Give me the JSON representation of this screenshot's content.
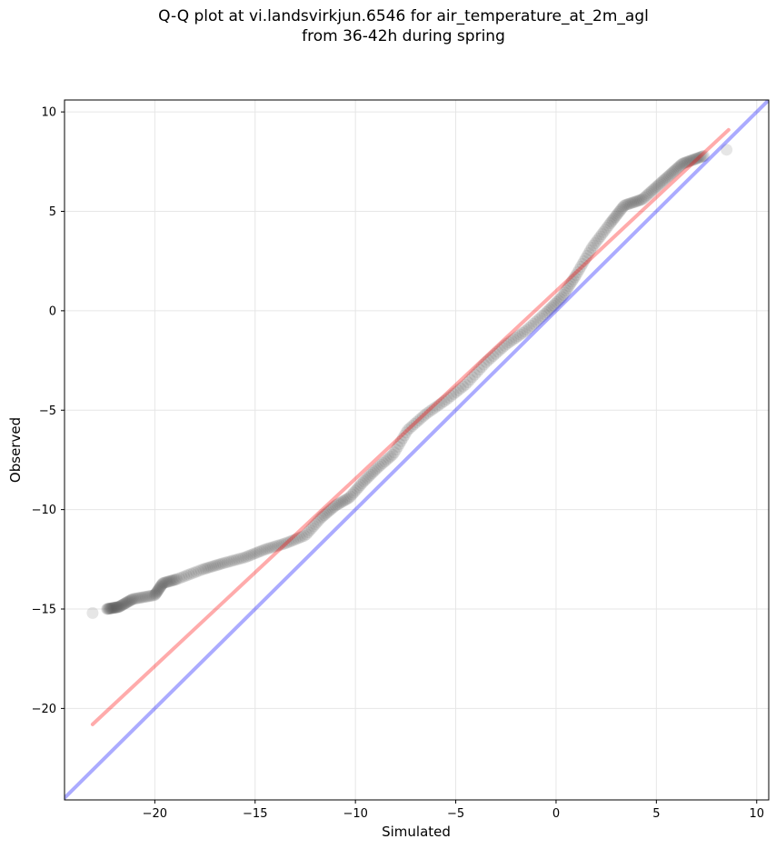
{
  "chart_data": {
    "type": "scatter",
    "title": [
      "Q-Q plot at vi.landsvirkjun.6546 for air_temperature_at_2m_agl",
      "from 36-42h during spring"
    ],
    "xlabel": "Simulated",
    "ylabel": "Observed",
    "xlim": [
      -24.5,
      10.6
    ],
    "ylim": [
      -24.6,
      10.6
    ],
    "xticks": [
      -20,
      -15,
      -10,
      -5,
      0,
      5,
      10
    ],
    "yticks": [
      -20,
      -15,
      -10,
      -5,
      0,
      5,
      10
    ],
    "xtick_labels": [
      "−20",
      "−15",
      "−10",
      "−5",
      "0",
      "5",
      "10"
    ],
    "ytick_labels": [
      "−20",
      "−15",
      "−10",
      "−5",
      "0",
      "5",
      "10"
    ],
    "grid": true,
    "points": {
      "color": "#555555",
      "knots": [
        [
          -23.1,
          -15.2
        ],
        [
          -22.4,
          -15.0
        ],
        [
          -21.8,
          -14.9
        ],
        [
          -21.1,
          -14.5
        ],
        [
          -20.0,
          -14.3
        ],
        [
          -19.6,
          -13.7
        ],
        [
          -18.9,
          -13.5
        ],
        [
          -17.6,
          -13.0
        ],
        [
          -16.6,
          -12.7
        ],
        [
          -15.5,
          -12.4
        ],
        [
          -14.5,
          -12.0
        ],
        [
          -13.5,
          -11.7
        ],
        [
          -12.5,
          -11.3
        ],
        [
          -11.7,
          -10.4
        ],
        [
          -11.0,
          -9.8
        ],
        [
          -10.3,
          -9.4
        ],
        [
          -9.6,
          -8.6
        ],
        [
          -8.9,
          -7.9
        ],
        [
          -8.1,
          -7.2
        ],
        [
          -7.4,
          -6.0
        ],
        [
          -6.5,
          -5.2
        ],
        [
          -5.5,
          -4.5
        ],
        [
          -4.5,
          -3.7
        ],
        [
          -3.5,
          -2.6
        ],
        [
          -2.5,
          -1.7
        ],
        [
          -1.5,
          -1.0
        ],
        [
          -0.5,
          -0.1
        ],
        [
          0.3,
          0.7
        ],
        [
          1.0,
          1.8
        ],
        [
          1.8,
          3.2
        ],
        [
          2.7,
          4.4
        ],
        [
          3.4,
          5.3
        ],
        [
          4.3,
          5.6
        ],
        [
          5.3,
          6.5
        ],
        [
          6.3,
          7.4
        ],
        [
          7.4,
          7.8
        ],
        [
          8.5,
          8.1
        ]
      ],
      "n": 360
    },
    "lines": [
      {
        "name": "fit",
        "color": "#ff0000",
        "opacity": 0.33,
        "x": [
          -23.1,
          8.6
        ],
        "y": [
          -20.8,
          9.1
        ]
      },
      {
        "name": "1:1",
        "color": "#0000ff",
        "opacity": 0.33,
        "x": [
          -24.5,
          10.6
        ],
        "y": [
          -24.5,
          10.6
        ]
      }
    ]
  }
}
